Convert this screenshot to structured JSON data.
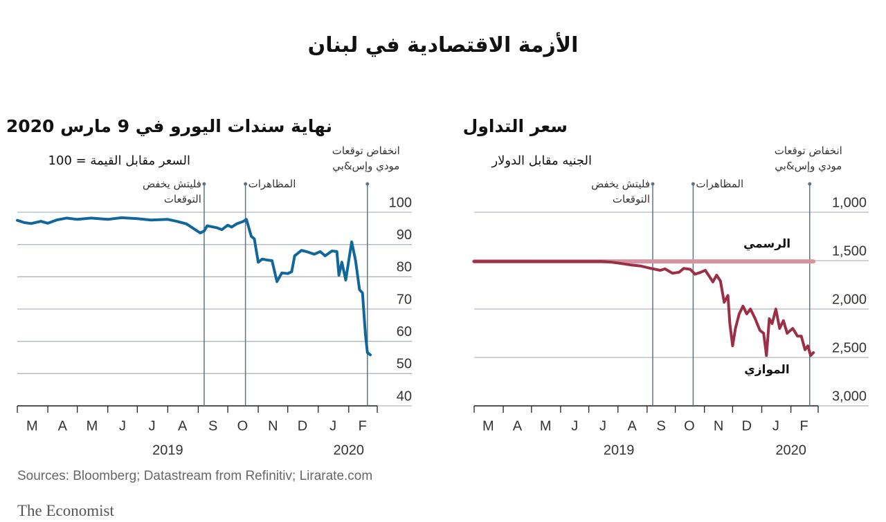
{
  "title": "الأزمة الاقتصادية في لبنان",
  "source": "Sources: Bloomberg; Datastream from Refinitiv; Lirarate.com",
  "publisher": "The Economist",
  "chart_data": [
    {
      "type": "line",
      "title": "سعر التداول",
      "subtitle": "الجنيه مقابل الدولار",
      "xlim": [
        "2019-03-01",
        "2020-03-01"
      ],
      "xticks": [
        "2019-03-01",
        "2019-04-01",
        "2019-05-01",
        "2019-06-01",
        "2019-07-01",
        "2019-08-01",
        "2019-09-01",
        "2019-10-01",
        "2019-11-01",
        "2019-12-01",
        "2020-01-01",
        "2020-02-01",
        "2020-03-01"
      ],
      "months": [
        {
          "value": "2019-03-16",
          "label": "M"
        },
        {
          "value": "2019-04-16",
          "label": "A"
        },
        {
          "value": "2019-05-16",
          "label": "M"
        },
        {
          "value": "2019-06-16",
          "label": "J"
        },
        {
          "value": "2019-07-16",
          "label": "J"
        },
        {
          "value": "2019-08-16",
          "label": "A"
        },
        {
          "value": "2019-09-16",
          "label": "S"
        },
        {
          "value": "2019-10-16",
          "label": "O"
        },
        {
          "value": "2019-11-16",
          "label": "N"
        },
        {
          "value": "2019-12-16",
          "label": "D"
        },
        {
          "value": "2020-01-16",
          "label": "J"
        },
        {
          "value": "2020-02-15",
          "label": "F"
        }
      ],
      "years": [
        {
          "value": "2019-08-02",
          "label": "2019"
        },
        {
          "value": "2020-02-01",
          "label": "2020"
        }
      ],
      "ylim": [
        3000,
        1000
      ],
      "yticks": [
        {
          "value": 1000,
          "label": "1,000"
        },
        {
          "value": 1500,
          "label": "1,500"
        },
        {
          "value": 2000,
          "label": "2,000"
        },
        {
          "value": 2500,
          "label": "2,500"
        },
        {
          "value": 3000,
          "label": "3,000"
        }
      ],
      "grid": true,
      "annotations": [
        {
          "x": "2019-09-07",
          "text": "فليتش يخفض التوقعات"
        },
        {
          "x": "2019-10-20",
          "text": "المظاهرات"
        },
        {
          "x": "2020-02-21",
          "text": "انخفاض توقعات مودي وإس&بي"
        }
      ],
      "series": [
        {
          "name": "الرسمي",
          "color": "#d4939f",
          "x": [
            "2019-03-01",
            "2020-02-25"
          ],
          "values": [
            1507.5,
            1507.5
          ]
        },
        {
          "name": "الموازي",
          "color": "#9b2f45",
          "x": [
            "2019-03-01",
            "2019-07-15",
            "2019-07-25",
            "2019-08-05",
            "2019-08-15",
            "2019-08-25",
            "2019-09-05",
            "2019-09-15",
            "2019-09-20",
            "2019-09-28",
            "2019-10-05",
            "2019-10-10",
            "2019-10-17",
            "2019-10-22",
            "2019-10-28",
            "2019-11-02",
            "2019-11-06",
            "2019-11-10",
            "2019-11-14",
            "2019-11-18",
            "2019-11-22",
            "2019-11-26",
            "2019-11-28",
            "2019-12-01",
            "2019-12-04",
            "2019-12-08",
            "2019-12-12",
            "2019-12-16",
            "2019-12-20",
            "2019-12-25",
            "2019-12-30",
            "2020-01-03",
            "2020-01-06",
            "2020-01-09",
            "2020-01-12",
            "2020-01-16",
            "2020-01-20",
            "2020-01-24",
            "2020-01-28",
            "2020-02-03",
            "2020-02-08",
            "2020-02-12",
            "2020-02-16",
            "2020-02-19",
            "2020-02-22",
            "2020-02-25"
          ],
          "values": [
            1507.5,
            1507.5,
            1515,
            1530,
            1545,
            1555,
            1580,
            1600,
            1585,
            1630,
            1620,
            1580,
            1590,
            1640,
            1620,
            1600,
            1660,
            1720,
            1650,
            1710,
            1930,
            1860,
            2150,
            2380,
            2200,
            2050,
            1970,
            2050,
            2000,
            2100,
            2220,
            2250,
            2480,
            2100,
            2150,
            2000,
            2200,
            2120,
            2250,
            2200,
            2280,
            2280,
            2420,
            2380,
            2480,
            2450
          ]
        }
      ]
    },
    {
      "type": "line",
      "title": "نهاية سندات اليورو في 9 مارس 2020",
      "subtitle": "السعر مقابل القيمة = 100",
      "xlim": [
        "2019-03-01",
        "2020-03-01"
      ],
      "xticks": [
        "2019-03-01",
        "2019-04-01",
        "2019-05-01",
        "2019-06-01",
        "2019-07-01",
        "2019-08-01",
        "2019-09-01",
        "2019-10-01",
        "2019-11-01",
        "2019-12-01",
        "2020-01-01",
        "2020-02-01",
        "2020-03-01"
      ],
      "months": [
        {
          "value": "2019-03-16",
          "label": "M"
        },
        {
          "value": "2019-04-16",
          "label": "A"
        },
        {
          "value": "2019-05-16",
          "label": "M"
        },
        {
          "value": "2019-06-16",
          "label": "J"
        },
        {
          "value": "2019-07-16",
          "label": "J"
        },
        {
          "value": "2019-08-16",
          "label": "A"
        },
        {
          "value": "2019-09-16",
          "label": "S"
        },
        {
          "value": "2019-10-16",
          "label": "O"
        },
        {
          "value": "2019-11-16",
          "label": "N"
        },
        {
          "value": "2019-12-16",
          "label": "D"
        },
        {
          "value": "2020-01-16",
          "label": "J"
        },
        {
          "value": "2020-02-15",
          "label": "F"
        }
      ],
      "years": [
        {
          "value": "2019-08-01",
          "label": "2019"
        },
        {
          "value": "2020-02-01",
          "label": "2020"
        }
      ],
      "ylim": [
        40,
        100
      ],
      "yticks": [
        100,
        90,
        80,
        70,
        60,
        50,
        40
      ],
      "grid": true,
      "annotations": [
        {
          "x": "2019-09-07",
          "text": "فليتش يخفض التوقعات"
        },
        {
          "x": "2019-10-19",
          "text": "المظاهرات"
        },
        {
          "x": "2020-02-20",
          "text": "انخفاض توقعات مودي وإس&بي"
        }
      ],
      "series": [
        {
          "color": "#11679b",
          "x": [
            "2019-03-01",
            "2019-03-08",
            "2019-03-15",
            "2019-03-25",
            "2019-04-01",
            "2019-04-10",
            "2019-04-20",
            "2019-05-01",
            "2019-05-15",
            "2019-06-01",
            "2019-06-15",
            "2019-07-01",
            "2019-07-15",
            "2019-08-01",
            "2019-08-10",
            "2019-08-20",
            "2019-08-28",
            "2019-09-03",
            "2019-09-07",
            "2019-09-10",
            "2019-09-20",
            "2019-09-25",
            "2019-10-01",
            "2019-10-05",
            "2019-10-10",
            "2019-10-17",
            "2019-10-20",
            "2019-10-25",
            "2019-10-28",
            "2019-11-01",
            "2019-11-05",
            "2019-11-10",
            "2019-11-15",
            "2019-11-20",
            "2019-11-25",
            "2019-12-01",
            "2019-12-05",
            "2019-12-08",
            "2019-12-15",
            "2019-12-20",
            "2019-12-28",
            "2020-01-03",
            "2020-01-08",
            "2020-01-15",
            "2020-01-20",
            "2020-01-22",
            "2020-01-25",
            "2020-01-29",
            "2020-02-01",
            "2020-02-04",
            "2020-02-08",
            "2020-02-12",
            "2020-02-15",
            "2020-02-18",
            "2020-02-20",
            "2020-02-23"
          ],
          "values": [
            97.5,
            96.8,
            96.5,
            97.2,
            96.6,
            97.6,
            98.2,
            97.8,
            98.2,
            97.8,
            98.3,
            98.0,
            97.6,
            97.8,
            97.2,
            96.4,
            94.8,
            93.6,
            94.2,
            95.8,
            95.2,
            94.6,
            96.0,
            95.4,
            96.4,
            97.2,
            97.8,
            92.5,
            91.8,
            84.5,
            85.5,
            85.2,
            85.0,
            78.5,
            81.2,
            81.0,
            81.6,
            86.5,
            88.2,
            87.8,
            87.0,
            87.8,
            86.5,
            88.0,
            87.8,
            80.5,
            84.5,
            79.0,
            85.0,
            90.8,
            85.0,
            76.0,
            75.0,
            62.0,
            56.5,
            55.8
          ]
        }
      ]
    }
  ]
}
